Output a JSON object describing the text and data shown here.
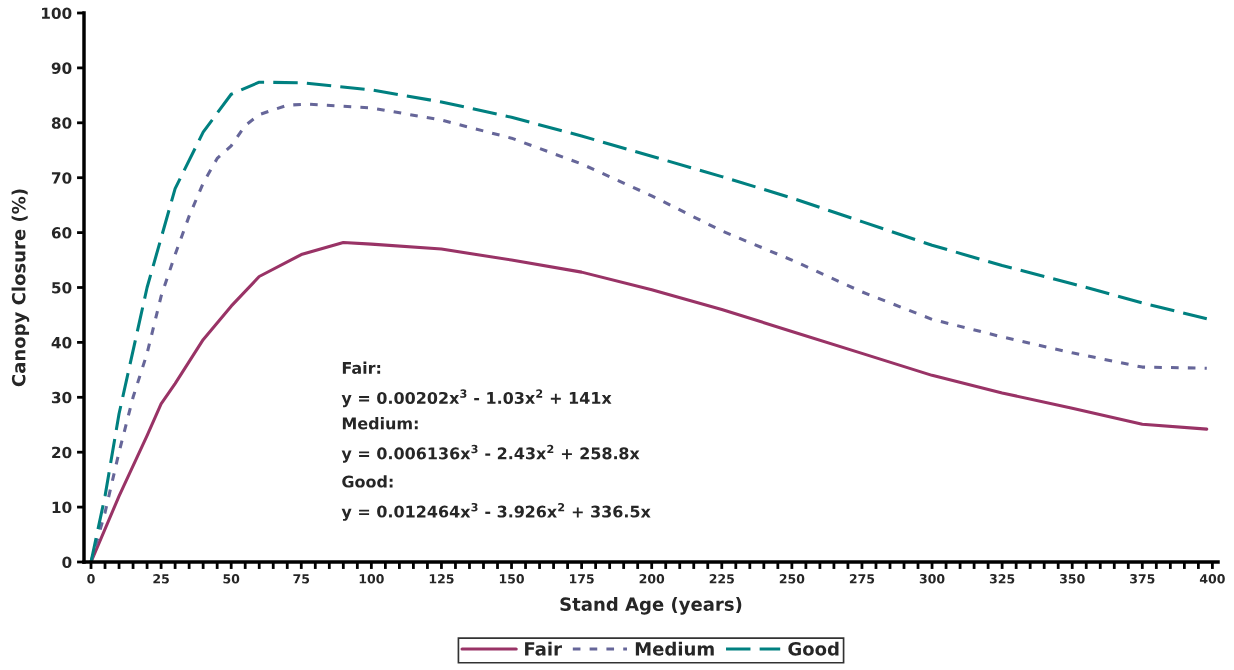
{
  "chart_data": {
    "type": "line",
    "xlabel": "Stand Age (years)",
    "ylabel": "Canopy Closure (%)",
    "xlim": [
      -2.5,
      402
    ],
    "ylim": [
      0,
      100
    ],
    "xticks": [
      0,
      {
        "value": 5,
        "label": null
      },
      {
        "value": 10,
        "label": null
      },
      {
        "value": 15,
        "label": null
      },
      {
        "value": 20,
        "label": null
      },
      25,
      {
        "value": 30,
        "label": null
      },
      {
        "value": 35,
        "label": null
      },
      {
        "value": 40,
        "label": null
      },
      {
        "value": 45,
        "label": null
      },
      50,
      {
        "value": 55,
        "label": null
      },
      {
        "value": 60,
        "label": null
      },
      {
        "value": 65,
        "label": null
      },
      {
        "value": 70,
        "label": null
      },
      75,
      {
        "value": 80,
        "label": null
      },
      {
        "value": 85,
        "label": null
      },
      {
        "value": 90,
        "label": null
      },
      {
        "value": 95,
        "label": null
      },
      100,
      {
        "value": 105,
        "label": null
      },
      {
        "value": 110,
        "label": null
      },
      {
        "value": 115,
        "label": null
      },
      {
        "value": 120,
        "label": null
      },
      125,
      {
        "value": 130,
        "label": null
      },
      {
        "value": 135,
        "label": null
      },
      {
        "value": 140,
        "label": null
      },
      {
        "value": 145,
        "label": null
      },
      150,
      {
        "value": 155,
        "label": null
      },
      {
        "value": 160,
        "label": null
      },
      {
        "value": 165,
        "label": null
      },
      {
        "value": 170,
        "label": null
      },
      175,
      {
        "value": 180,
        "label": null
      },
      {
        "value": 185,
        "label": null
      },
      {
        "value": 190,
        "label": null
      },
      {
        "value": 195,
        "label": null
      },
      200,
      {
        "value": 205,
        "label": null
      },
      {
        "value": 210,
        "label": null
      },
      {
        "value": 215,
        "label": null
      },
      {
        "value": 220,
        "label": null
      },
      225,
      {
        "value": 230,
        "label": null
      },
      {
        "value": 235,
        "label": null
      },
      {
        "value": 240,
        "label": null
      },
      {
        "value": 245,
        "label": null
      },
      250,
      {
        "value": 255,
        "label": null
      },
      {
        "value": 260,
        "label": null
      },
      {
        "value": 265,
        "label": null
      },
      {
        "value": 270,
        "label": null
      },
      275,
      {
        "value": 280,
        "label": null
      },
      {
        "value": 285,
        "label": null
      },
      {
        "value": 290,
        "label": null
      },
      {
        "value": 295,
        "label": null
      },
      300,
      {
        "value": 305,
        "label": null
      },
      {
        "value": 310,
        "label": null
      },
      {
        "value": 315,
        "label": null
      },
      {
        "value": 320,
        "label": null
      },
      325,
      {
        "value": 330,
        "label": null
      },
      {
        "value": 335,
        "label": null
      },
      {
        "value": 340,
        "label": null
      },
      {
        "value": 345,
        "label": null
      },
      350,
      {
        "value": 355,
        "label": null
      },
      {
        "value": 360,
        "label": null
      },
      {
        "value": 365,
        "label": null
      },
      {
        "value": 370,
        "label": null
      },
      375,
      {
        "value": 380,
        "label": null
      },
      {
        "value": 385,
        "label": null
      },
      {
        "value": 390,
        "label": null
      },
      {
        "value": 395,
        "label": null
      },
      400
    ],
    "yticks": [
      0,
      10,
      20,
      30,
      40,
      50,
      60,
      70,
      80,
      90,
      100
    ],
    "grid": false,
    "legend": "bottom",
    "series": [
      {
        "name": "Fair",
        "color": "#993366",
        "line_style": "solid",
        "x": [
          0,
          10,
          20,
          25,
          30,
          40,
          50,
          60,
          75,
          90,
          100,
          125,
          150,
          175,
          200,
          225,
          250,
          275,
          300,
          325,
          350,
          375,
          398
        ],
        "values": [
          0,
          12,
          23,
          28.8,
          32.5,
          40.5,
          46.6,
          52,
          56,
          58.2,
          57.9,
          57,
          55,
          52.8,
          49.6,
          46,
          42,
          38,
          34,
          30.8,
          28,
          25.1,
          24.2
        ]
      },
      {
        "name": "Medium",
        "color": "#666699",
        "line_style": "dotted",
        "x": [
          0,
          5,
          10,
          15,
          20,
          25,
          30,
          35,
          40,
          45,
          50,
          55,
          60,
          70,
          77,
          90,
          100,
          125,
          150,
          175,
          200,
          225,
          250,
          275,
          300,
          325,
          350,
          375,
          398
        ],
        "values": [
          0,
          9,
          20,
          30,
          38,
          48.4,
          56,
          63,
          69,
          73.5,
          75.8,
          79.5,
          81.5,
          83.2,
          83.4,
          83,
          82.7,
          80.5,
          77.2,
          72.5,
          66.7,
          60.3,
          55,
          49.2,
          44.2,
          41,
          38.1,
          35.5,
          35.3
        ]
      },
      {
        "name": "Good",
        "color": "#008080",
        "line_style": "dashed",
        "x": [
          0,
          5,
          10,
          20,
          30,
          40,
          50,
          60,
          75,
          100,
          125,
          150,
          175,
          200,
          225,
          250,
          275,
          300,
          325,
          350,
          375,
          398
        ],
        "values": [
          0,
          12,
          27,
          50,
          68,
          78.3,
          85.2,
          87.4,
          87.3,
          86,
          83.8,
          81,
          77.6,
          73.9,
          70.2,
          66.3,
          62,
          57.7,
          54,
          50.7,
          47.2,
          44.3
        ]
      }
    ],
    "annotations": [
      "Fair:",
      "y = 0.00202x$^{3}$ - 1.03x$^{2}$ + 141x",
      "Medium:",
      "y = 0.006136x$^{3}$ - 2.43x$^{2}$ + 258.8x",
      "Good:",
      "y = 0.012464x$^{3}$ - 3.926x$^{2}$ + 336.5x"
    ]
  }
}
